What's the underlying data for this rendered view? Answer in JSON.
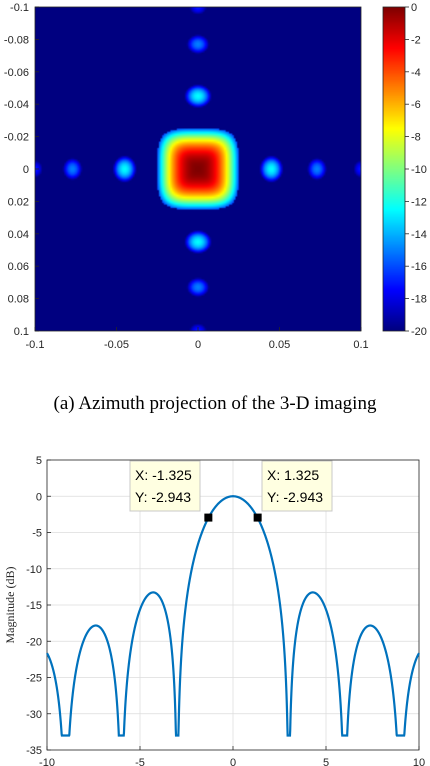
{
  "caption": "(a) Azimuth projection of the 3-D imaging",
  "chart_data": [
    {
      "type": "heatmap",
      "title": "",
      "xlim": [
        -0.1,
        0.1
      ],
      "ylim": [
        -0.1,
        0.1
      ],
      "y_reversed": true,
      "x_ticks": [
        "-0.1",
        "-0.05",
        "0",
        "0.05",
        "0.1"
      ],
      "y_ticks": [
        "-0.1",
        "-0.08",
        "-0.06",
        "-0.04",
        "-0.02",
        "0",
        "0.02",
        "0.04",
        "0.06",
        "0.08",
        "0.1"
      ],
      "colorbar": {
        "range": [
          -20,
          0
        ],
        "ticks": [
          "0",
          "-2",
          "-4",
          "-6",
          "-8",
          "-10",
          "-12",
          "-14",
          "-16",
          "-18",
          "-20"
        ],
        "colormap": "jet"
      },
      "main_lobe_halfwidth": 0.025,
      "sidelobes": [
        {
          "x": 0,
          "y": -0.1,
          "db": -17
        },
        {
          "x": 0,
          "y": -0.077,
          "db": -15
        },
        {
          "x": 0,
          "y": -0.045,
          "db": -12.5
        },
        {
          "x": 0,
          "y": 0.045,
          "db": -12.5
        },
        {
          "x": 0,
          "y": 0.073,
          "db": -15
        },
        {
          "x": 0,
          "y": 0.1,
          "db": -17
        },
        {
          "x": -0.1,
          "y": 0,
          "db": -17
        },
        {
          "x": -0.077,
          "y": 0,
          "db": -15
        },
        {
          "x": -0.045,
          "y": 0,
          "db": -12.5
        },
        {
          "x": 0.045,
          "y": 0,
          "db": -12.5
        },
        {
          "x": 0.073,
          "y": 0,
          "db": -15
        },
        {
          "x": 0.1,
          "y": 0,
          "db": -17
        }
      ]
    },
    {
      "type": "line",
      "title": "",
      "xlabel": "",
      "ylabel": "Magnitude (dB)",
      "xlim": [
        -10,
        10
      ],
      "ylim": [
        -35,
        5
      ],
      "x_ticks": [
        "-10",
        "-5",
        "0",
        "5",
        "10"
      ],
      "y_ticks": [
        "5",
        "0",
        "-5",
        "-10",
        "-15",
        "-20",
        "-25",
        "-30",
        "-35"
      ],
      "grid": true,
      "line_color": "#0072bd",
      "null_floor_db": -33,
      "datatips": [
        {
          "x_text": "X: -1.325",
          "y_text": "Y: -2.943",
          "x": -1.325,
          "y": -2.943
        },
        {
          "x_text": "X: 1.325",
          "y_text": "Y: -2.943",
          "x": 1.325,
          "y": -2.943
        }
      ]
    }
  ]
}
